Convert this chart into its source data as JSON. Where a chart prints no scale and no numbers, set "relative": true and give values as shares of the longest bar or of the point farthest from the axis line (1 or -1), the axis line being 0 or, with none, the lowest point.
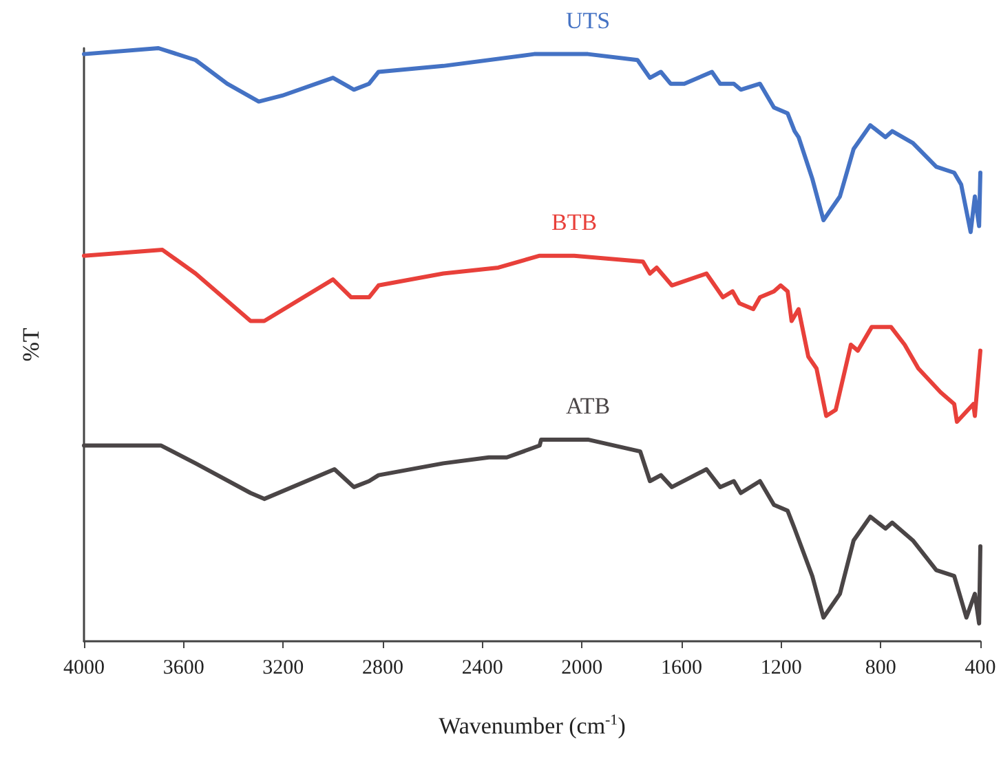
{
  "chart_data": {
    "type": "line",
    "relative": true,
    "xlabel": "Wavenumber (cm$^{-1}$)",
    "ylabel": "%T",
    "xlim": [
      4000,
      400
    ],
    "xticks": [
      4000,
      3600,
      3200,
      2800,
      2400,
      2000,
      1600,
      1200,
      800,
      400
    ],
    "tick_labels": "x",
    "grid": false,
    "legend": false,
    "marker": "none",
    "line_style": "solid",
    "series": [
      {
        "name": "UTS",
        "color": "#4472c4",
        "x": [
          4000,
          3701,
          3552,
          3425,
          3298,
          3204,
          3000,
          2916,
          2855,
          2817,
          2557,
          2192,
          2164,
          1976,
          1777,
          1727,
          1683,
          1644,
          1589,
          1478,
          1445,
          1390,
          1362,
          1285,
          1229,
          1174,
          1146,
          1130,
          1075,
          1030,
          964,
          909,
          842,
          781,
          754,
          671,
          577,
          505,
          477,
          439,
          422,
          405,
          400
        ],
        "values": [
          0.99,
          1.0,
          0.98,
          0.94,
          0.91,
          0.92,
          0.95,
          0.93,
          0.94,
          0.96,
          0.97,
          0.99,
          0.99,
          0.99,
          0.98,
          0.95,
          0.96,
          0.94,
          0.94,
          0.96,
          0.94,
          0.94,
          0.93,
          0.94,
          0.9,
          0.89,
          0.86,
          0.85,
          0.78,
          0.71,
          0.75,
          0.83,
          0.87,
          0.85,
          0.86,
          0.84,
          0.8,
          0.79,
          0.77,
          0.69,
          0.75,
          0.7,
          0.79
        ]
      },
      {
        "name": "BTB",
        "color": "#e8403a",
        "x": [
          4000,
          3685,
          3552,
          3331,
          3276,
          3000,
          2927,
          2855,
          2817,
          2557,
          2336,
          2170,
          2031,
          1755,
          1727,
          1700,
          1639,
          1500,
          1434,
          1395,
          1368,
          1312,
          1285,
          1229,
          1202,
          1174,
          1158,
          1130,
          1091,
          1058,
          1019,
          981,
          920,
          892,
          836,
          759,
          704,
          649,
          560,
          505,
          494,
          428,
          422,
          400
        ],
        "values": [
          0.65,
          0.66,
          0.62,
          0.54,
          0.54,
          0.61,
          0.58,
          0.58,
          0.6,
          0.62,
          0.63,
          0.65,
          0.65,
          0.64,
          0.62,
          0.63,
          0.6,
          0.62,
          0.58,
          0.59,
          0.57,
          0.56,
          0.58,
          0.59,
          0.6,
          0.59,
          0.54,
          0.56,
          0.48,
          0.46,
          0.38,
          0.39,
          0.5,
          0.49,
          0.53,
          0.53,
          0.5,
          0.46,
          0.42,
          0.4,
          0.37,
          0.4,
          0.38,
          0.49
        ]
      },
      {
        "name": "ATB",
        "color": "#4a4546",
        "x": [
          4000,
          3795,
          3690,
          3552,
          3331,
          3276,
          2994,
          2916,
          2855,
          2817,
          2557,
          2374,
          2302,
          2170,
          2164,
          1976,
          1766,
          1727,
          1683,
          1639,
          1500,
          1445,
          1390,
          1362,
          1285,
          1229,
          1174,
          1146,
          1075,
          1030,
          964,
          909,
          842,
          781,
          754,
          671,
          577,
          505,
          456,
          422,
          405,
          400
        ],
        "values": [
          0.33,
          0.33,
          0.33,
          0.3,
          0.25,
          0.24,
          0.29,
          0.26,
          0.27,
          0.28,
          0.3,
          0.31,
          0.31,
          0.33,
          0.34,
          0.34,
          0.32,
          0.27,
          0.28,
          0.26,
          0.29,
          0.26,
          0.27,
          0.25,
          0.27,
          0.23,
          0.22,
          0.19,
          0.11,
          0.04,
          0.08,
          0.17,
          0.21,
          0.19,
          0.2,
          0.17,
          0.12,
          0.11,
          0.04,
          0.08,
          0.03,
          0.16
        ]
      }
    ]
  }
}
